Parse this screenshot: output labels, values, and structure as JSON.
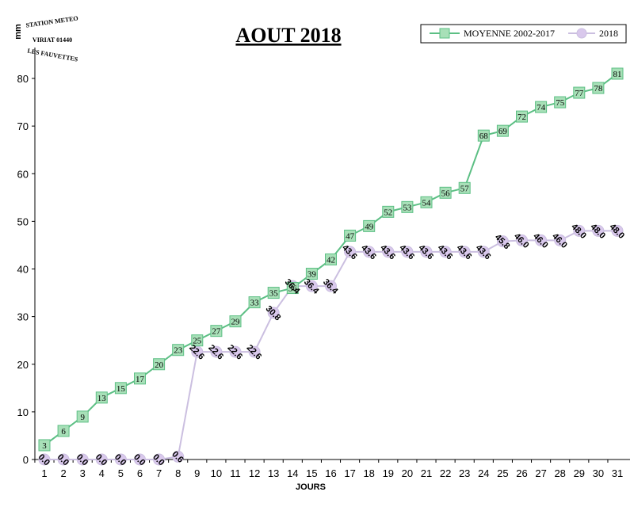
{
  "chart_data": {
    "type": "line",
    "title": "AOUT 2018",
    "xlabel": "JOURS",
    "ylabel": "mm",
    "ylim": [
      0,
      85
    ],
    "yticks": [
      0,
      10,
      20,
      30,
      40,
      50,
      60,
      70,
      80
    ],
    "categories": [
      "1",
      "2",
      "3",
      "4",
      "5",
      "6",
      "7",
      "8",
      "9",
      "10",
      "11",
      "12",
      "13",
      "14",
      "15",
      "16",
      "17",
      "18",
      "19",
      "20",
      "21",
      "22",
      "23",
      "24",
      "25",
      "26",
      "27",
      "28",
      "29",
      "30",
      "31"
    ],
    "legend_position": "top-right",
    "grid": false,
    "series": [
      {
        "name": "MOYENNE 2002-2017",
        "color": "#5cbf84",
        "fill": "#a8e0b8",
        "marker": "square",
        "values": [
          3,
          6,
          9,
          13,
          15,
          17,
          20,
          23,
          25,
          27,
          29,
          33,
          35,
          36,
          39,
          42,
          47,
          49,
          52,
          53,
          54,
          56,
          57,
          68,
          69,
          72,
          74,
          75,
          77,
          78,
          81
        ],
        "labels": [
          "3",
          "6",
          "9",
          "13",
          "15",
          "17",
          "20",
          "23",
          "25",
          "27",
          "29",
          "33",
          "35",
          "36",
          "39",
          "42",
          "47",
          "49",
          "52",
          "53",
          "54",
          "56",
          "57",
          "68",
          "69",
          "72",
          "74",
          "75",
          "77",
          "78",
          "81"
        ]
      },
      {
        "name": "2018",
        "color": "#cbbfe0",
        "fill": "#d9c8ec",
        "marker": "circle",
        "values": [
          0.0,
          0.0,
          0.0,
          0.0,
          0.0,
          0.0,
          0.0,
          0.6,
          22.6,
          22.6,
          22.6,
          22.6,
          30.8,
          36.4,
          36.4,
          36.4,
          43.6,
          43.6,
          43.6,
          43.6,
          43.6,
          43.6,
          43.6,
          43.6,
          45.8,
          46.0,
          46.0,
          46.0,
          48.0,
          48.0,
          48.0
        ],
        "labels": [
          "0.0",
          "0.0",
          "0.0",
          "0.0",
          "0.0",
          "0.0",
          "0.0",
          "0.6",
          "22.6",
          "22.6",
          "22.6",
          "22.6",
          "30.8",
          "36.4",
          "36.4",
          "36.4",
          "43.6",
          "43.6",
          "43.6",
          "43.6",
          "43.6",
          "43.6",
          "43.6",
          "43.6",
          "45.8",
          "46.0",
          "46.0",
          "46.0",
          "48.0",
          "48.0",
          "48.0"
        ]
      }
    ]
  },
  "logo": {
    "lines": [
      "STATION METEO",
      "VIRIAT 01440",
      "LES FAUVETTES"
    ]
  }
}
